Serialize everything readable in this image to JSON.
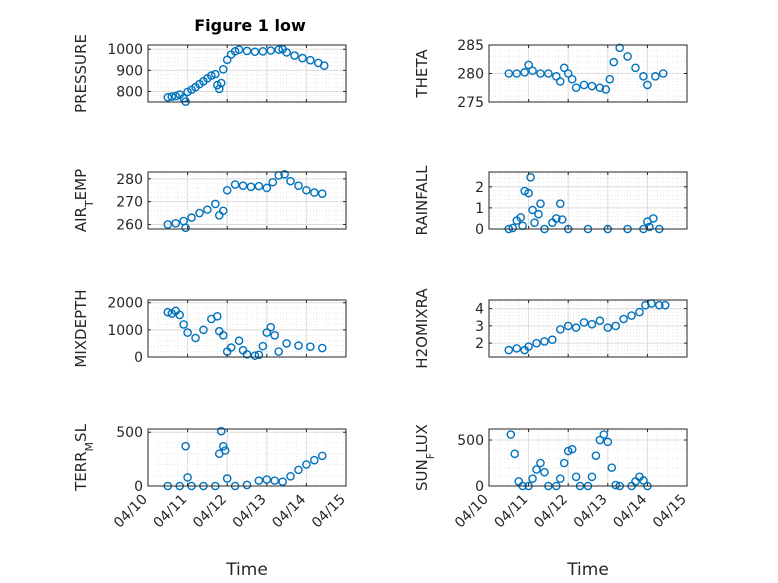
{
  "figure": {
    "title": "Figure 1 low",
    "xlabel": "Time",
    "marker_color": "#0072BD"
  },
  "chart_data": [
    {
      "type": "scatter",
      "ylabel": "PRESSURE",
      "xlim": [
        "04/10",
        "04/15"
      ],
      "ylim": [
        750,
        1020
      ],
      "yticks": [
        800,
        900,
        1000
      ],
      "xtick_labels": [],
      "points": [
        [
          10.5,
          772
        ],
        [
          10.6,
          775
        ],
        [
          10.7,
          778
        ],
        [
          10.8,
          785
        ],
        [
          10.9,
          768
        ],
        [
          10.95,
          752
        ],
        [
          11.0,
          798
        ],
        [
          11.1,
          808
        ],
        [
          11.2,
          820
        ],
        [
          11.3,
          835
        ],
        [
          11.4,
          848
        ],
        [
          11.5,
          862
        ],
        [
          11.6,
          875
        ],
        [
          11.7,
          882
        ],
        [
          11.75,
          830
        ],
        [
          11.8,
          812
        ],
        [
          11.85,
          840
        ],
        [
          11.9,
          905
        ],
        [
          12.0,
          950
        ],
        [
          12.1,
          975
        ],
        [
          12.2,
          990
        ],
        [
          12.3,
          998
        ],
        [
          12.5,
          992
        ],
        [
          12.7,
          988
        ],
        [
          12.9,
          990
        ],
        [
          13.1,
          994
        ],
        [
          13.3,
          998
        ],
        [
          13.4,
          1000
        ],
        [
          13.5,
          985
        ],
        [
          13.7,
          970
        ],
        [
          13.9,
          958
        ],
        [
          14.1,
          948
        ],
        [
          14.3,
          935
        ],
        [
          14.45,
          922
        ]
      ]
    },
    {
      "type": "scatter",
      "ylabel": "THETA",
      "xlim": [
        "04/10",
        "04/15"
      ],
      "ylim": [
        275,
        285
      ],
      "yticks": [
        275,
        280,
        285
      ],
      "xtick_labels": [],
      "points": [
        [
          10.5,
          280
        ],
        [
          10.7,
          280
        ],
        [
          10.9,
          280.2
        ],
        [
          11.0,
          281.5
        ],
        [
          11.1,
          280.5
        ],
        [
          11.3,
          280
        ],
        [
          11.5,
          280
        ],
        [
          11.7,
          279.5
        ],
        [
          11.8,
          278.6
        ],
        [
          11.9,
          281
        ],
        [
          12.0,
          280
        ],
        [
          12.1,
          279
        ],
        [
          12.2,
          277.5
        ],
        [
          12.4,
          278
        ],
        [
          12.6,
          277.8
        ],
        [
          12.8,
          277.5
        ],
        [
          12.95,
          277.2
        ],
        [
          13.05,
          279
        ],
        [
          13.15,
          282
        ],
        [
          13.3,
          284.5
        ],
        [
          13.5,
          283
        ],
        [
          13.7,
          281
        ],
        [
          13.9,
          279.5
        ],
        [
          14.0,
          278
        ],
        [
          14.2,
          279.5
        ],
        [
          14.4,
          280
        ]
      ]
    },
    {
      "type": "scatter",
      "ylabel": "AIR_TEMP",
      "xlim": [
        "04/10",
        "04/15"
      ],
      "ylim": [
        258,
        283
      ],
      "yticks": [
        260,
        270,
        280
      ],
      "xtick_labels": [],
      "points": [
        [
          10.5,
          260
        ],
        [
          10.7,
          260.5
        ],
        [
          10.9,
          261.5
        ],
        [
          10.95,
          258.5
        ],
        [
          11.1,
          263
        ],
        [
          11.3,
          265
        ],
        [
          11.5,
          266.5
        ],
        [
          11.7,
          269
        ],
        [
          11.8,
          264
        ],
        [
          11.9,
          266
        ],
        [
          12.0,
          275
        ],
        [
          12.2,
          277.5
        ],
        [
          12.4,
          277
        ],
        [
          12.6,
          276.5
        ],
        [
          12.8,
          276.8
        ],
        [
          13.0,
          276
        ],
        [
          13.15,
          278.5
        ],
        [
          13.3,
          281.5
        ],
        [
          13.45,
          282
        ],
        [
          13.6,
          279
        ],
        [
          13.8,
          277
        ],
        [
          14.0,
          275
        ],
        [
          14.2,
          274
        ],
        [
          14.4,
          273.5
        ]
      ]
    },
    {
      "type": "scatter",
      "ylabel": "RAINFALL",
      "xlim": [
        "04/10",
        "04/15"
      ],
      "ylim": [
        0,
        2.7
      ],
      "yticks": [
        0,
        1,
        2
      ],
      "xtick_labels": [],
      "points": [
        [
          10.5,
          0
        ],
        [
          10.6,
          0.05
        ],
        [
          10.7,
          0.4
        ],
        [
          10.8,
          0.55
        ],
        [
          10.85,
          0.15
        ],
        [
          10.9,
          1.8
        ],
        [
          11.0,
          1.7
        ],
        [
          11.05,
          2.45
        ],
        [
          11.1,
          0.9
        ],
        [
          11.15,
          0.3
        ],
        [
          11.25,
          0.7
        ],
        [
          11.3,
          1.2
        ],
        [
          11.4,
          0
        ],
        [
          11.6,
          0.3
        ],
        [
          11.7,
          0.5
        ],
        [
          11.8,
          1.2
        ],
        [
          11.85,
          0.45
        ],
        [
          12.0,
          0
        ],
        [
          12.5,
          0
        ],
        [
          13.0,
          0
        ],
        [
          13.5,
          0
        ],
        [
          13.9,
          0
        ],
        [
          14.0,
          0.35
        ],
        [
          14.05,
          0.1
        ],
        [
          14.15,
          0.5
        ],
        [
          14.3,
          0
        ]
      ]
    },
    {
      "type": "scatter",
      "ylabel": "MIXDEPTH",
      "xlim": [
        "04/10",
        "04/15"
      ],
      "ylim": [
        0,
        2100
      ],
      "yticks": [
        0,
        1000,
        2000
      ],
      "xtick_labels": [],
      "points": [
        [
          10.5,
          1650
        ],
        [
          10.6,
          1600
        ],
        [
          10.7,
          1700
        ],
        [
          10.8,
          1550
        ],
        [
          10.9,
          1200
        ],
        [
          11.0,
          900
        ],
        [
          11.2,
          700
        ],
        [
          11.4,
          1000
        ],
        [
          11.6,
          1400
        ],
        [
          11.75,
          1500
        ],
        [
          11.8,
          950
        ],
        [
          11.9,
          800
        ],
        [
          12.0,
          200
        ],
        [
          12.1,
          350
        ],
        [
          12.3,
          600
        ],
        [
          12.4,
          250
        ],
        [
          12.5,
          100
        ],
        [
          12.7,
          50
        ],
        [
          12.8,
          80
        ],
        [
          12.9,
          400
        ],
        [
          13.0,
          900
        ],
        [
          13.1,
          1100
        ],
        [
          13.2,
          800
        ],
        [
          13.3,
          200
        ],
        [
          13.5,
          500
        ],
        [
          13.8,
          420
        ],
        [
          14.1,
          380
        ],
        [
          14.4,
          330
        ]
      ]
    },
    {
      "type": "scatter",
      "ylabel": "H2OMIXRA",
      "xlim": [
        "04/10",
        "04/15"
      ],
      "ylim": [
        1.2,
        4.5
      ],
      "yticks": [
        2,
        3,
        4
      ],
      "xtick_labels": [],
      "points": [
        [
          10.5,
          1.6
        ],
        [
          10.7,
          1.7
        ],
        [
          10.9,
          1.6
        ],
        [
          11.0,
          1.8
        ],
        [
          11.2,
          2
        ],
        [
          11.4,
          2.1
        ],
        [
          11.6,
          2.2
        ],
        [
          11.8,
          2.8
        ],
        [
          12.0,
          3
        ],
        [
          12.2,
          2.9
        ],
        [
          12.4,
          3.2
        ],
        [
          12.6,
          3.1
        ],
        [
          12.8,
          3.3
        ],
        [
          13.0,
          2.9
        ],
        [
          13.2,
          3
        ],
        [
          13.4,
          3.4
        ],
        [
          13.6,
          3.6
        ],
        [
          13.8,
          3.8
        ],
        [
          13.95,
          4.2
        ],
        [
          14.1,
          4.3
        ],
        [
          14.3,
          4.2
        ],
        [
          14.45,
          4.2
        ]
      ]
    },
    {
      "type": "scatter",
      "ylabel": "TERR_MSL",
      "xlim": [
        "04/10",
        "04/15"
      ],
      "ylim": [
        0,
        530
      ],
      "yticks": [
        0,
        500
      ],
      "xtick_labels": [
        "04/10",
        "04/11",
        "04/12",
        "04/13",
        "04/14",
        "04/15"
      ],
      "points": [
        [
          10.5,
          0
        ],
        [
          10.8,
          0
        ],
        [
          10.95,
          370
        ],
        [
          11.0,
          80
        ],
        [
          11.1,
          0
        ],
        [
          11.4,
          0
        ],
        [
          11.7,
          0
        ],
        [
          11.8,
          300
        ],
        [
          11.85,
          510
        ],
        [
          11.9,
          370
        ],
        [
          11.95,
          330
        ],
        [
          12.0,
          70
        ],
        [
          12.2,
          0
        ],
        [
          12.5,
          10
        ],
        [
          12.8,
          50
        ],
        [
          13.0,
          60
        ],
        [
          13.2,
          50
        ],
        [
          13.4,
          40
        ],
        [
          13.6,
          90
        ],
        [
          13.8,
          150
        ],
        [
          14.0,
          200
        ],
        [
          14.2,
          240
        ],
        [
          14.4,
          280
        ]
      ]
    },
    {
      "type": "scatter",
      "ylabel": "SUN_FLUX",
      "xlim": [
        "04/10",
        "04/15"
      ],
      "ylim": [
        0,
        620
      ],
      "yticks": [
        0,
        500
      ],
      "xtick_labels": [
        "04/10",
        "04/11",
        "04/12",
        "04/13",
        "04/14",
        "04/15"
      ],
      "points": [
        [
          10.55,
          560
        ],
        [
          10.65,
          350
        ],
        [
          10.75,
          50
        ],
        [
          10.85,
          0
        ],
        [
          11.0,
          0
        ],
        [
          11.1,
          80
        ],
        [
          11.2,
          180
        ],
        [
          11.3,
          250
        ],
        [
          11.4,
          150
        ],
        [
          11.5,
          0
        ],
        [
          11.7,
          0
        ],
        [
          11.8,
          80
        ],
        [
          11.9,
          250
        ],
        [
          12.0,
          380
        ],
        [
          12.1,
          400
        ],
        [
          12.2,
          100
        ],
        [
          12.3,
          0
        ],
        [
          12.5,
          0
        ],
        [
          12.6,
          100
        ],
        [
          12.7,
          330
        ],
        [
          12.8,
          500
        ],
        [
          12.9,
          560
        ],
        [
          13.0,
          480
        ],
        [
          13.1,
          200
        ],
        [
          13.2,
          10
        ],
        [
          13.3,
          0
        ],
        [
          13.6,
          0
        ],
        [
          13.7,
          50
        ],
        [
          13.8,
          100
        ],
        [
          13.9,
          60
        ],
        [
          14.0,
          0
        ]
      ]
    }
  ]
}
